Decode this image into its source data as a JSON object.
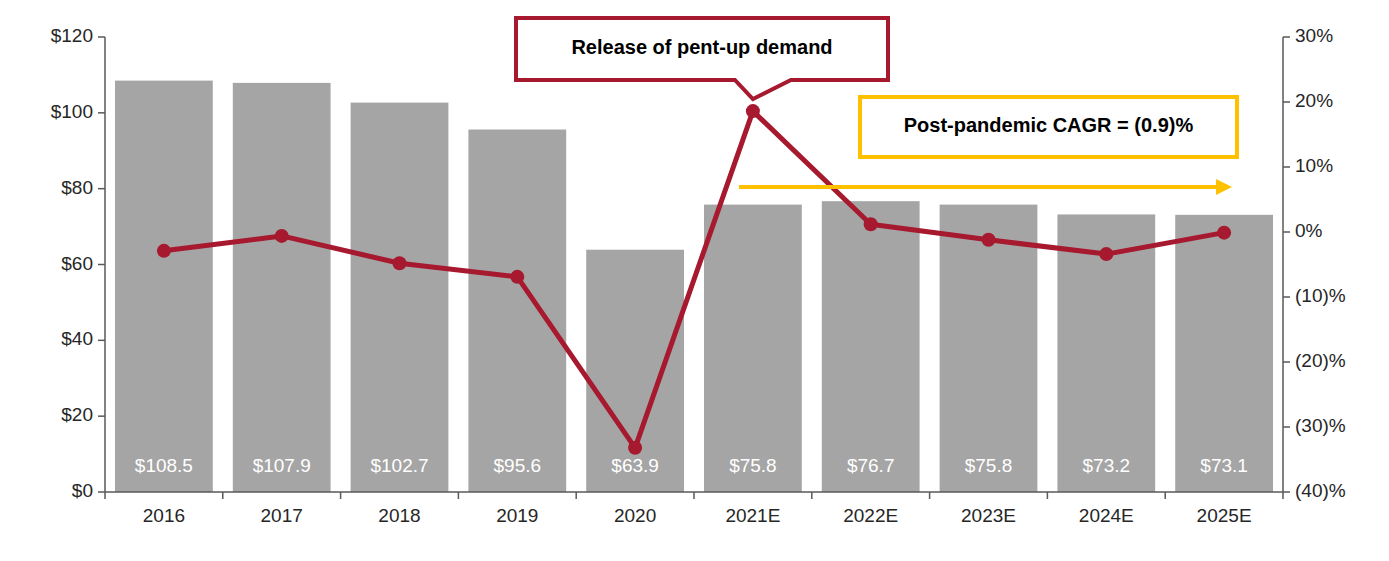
{
  "chart_data": {
    "type": "bar",
    "categories": [
      "2016",
      "2017",
      "2018",
      "2019",
      "2020",
      "2021E",
      "2022E",
      "2023E",
      "2024E",
      "2025E"
    ],
    "series": [
      {
        "type": "bar",
        "color": "#a5a5a5",
        "data_labels": true,
        "values": [
          108.5,
          107.9,
          102.7,
          95.6,
          63.9,
          75.8,
          76.7,
          75.8,
          73.2,
          73.1
        ],
        "value_labels": [
          "$108.5",
          "$107.9",
          "$102.7",
          "$95.6",
          "$63.9",
          "$75.8",
          "$76.7",
          "$75.8",
          "$73.2",
          "$73.1"
        ]
      },
      {
        "type": "line",
        "axis": "y2",
        "color": "#a6192e",
        "marker": "circle",
        "line_style": "solid",
        "values": [
          -2.9,
          -0.6,
          -4.8,
          -6.9,
          -33.2,
          18.6,
          1.2,
          -1.2,
          -3.4,
          -0.1
        ]
      }
    ],
    "ylim": [
      0,
      120
    ],
    "yticks": [
      {
        "value": 0,
        "label": "$0"
      },
      {
        "value": 20,
        "label": "$20"
      },
      {
        "value": 40,
        "label": "$40"
      },
      {
        "value": 60,
        "label": "$60"
      },
      {
        "value": 80,
        "label": "$80"
      },
      {
        "value": 100,
        "label": "$100"
      },
      {
        "value": 120,
        "label": "$120"
      }
    ],
    "y2lim": [
      -40,
      30
    ],
    "y2ticks": [
      {
        "value": -40,
        "label": "(40)%"
      },
      {
        "value": -30,
        "label": "(30)%"
      },
      {
        "value": -20,
        "label": "(20)%"
      },
      {
        "value": -10,
        "label": "(10)%"
      },
      {
        "value": 0,
        "label": "0%"
      },
      {
        "value": 10,
        "label": "10%"
      },
      {
        "value": 20,
        "label": "20%"
      },
      {
        "value": 30,
        "label": "30%"
      }
    ],
    "grid": false,
    "annotations": [
      {
        "text": "Release of pent-up demand"
      },
      {
        "text": "Post-pandemic CAGR = (0.9)%"
      }
    ]
  }
}
